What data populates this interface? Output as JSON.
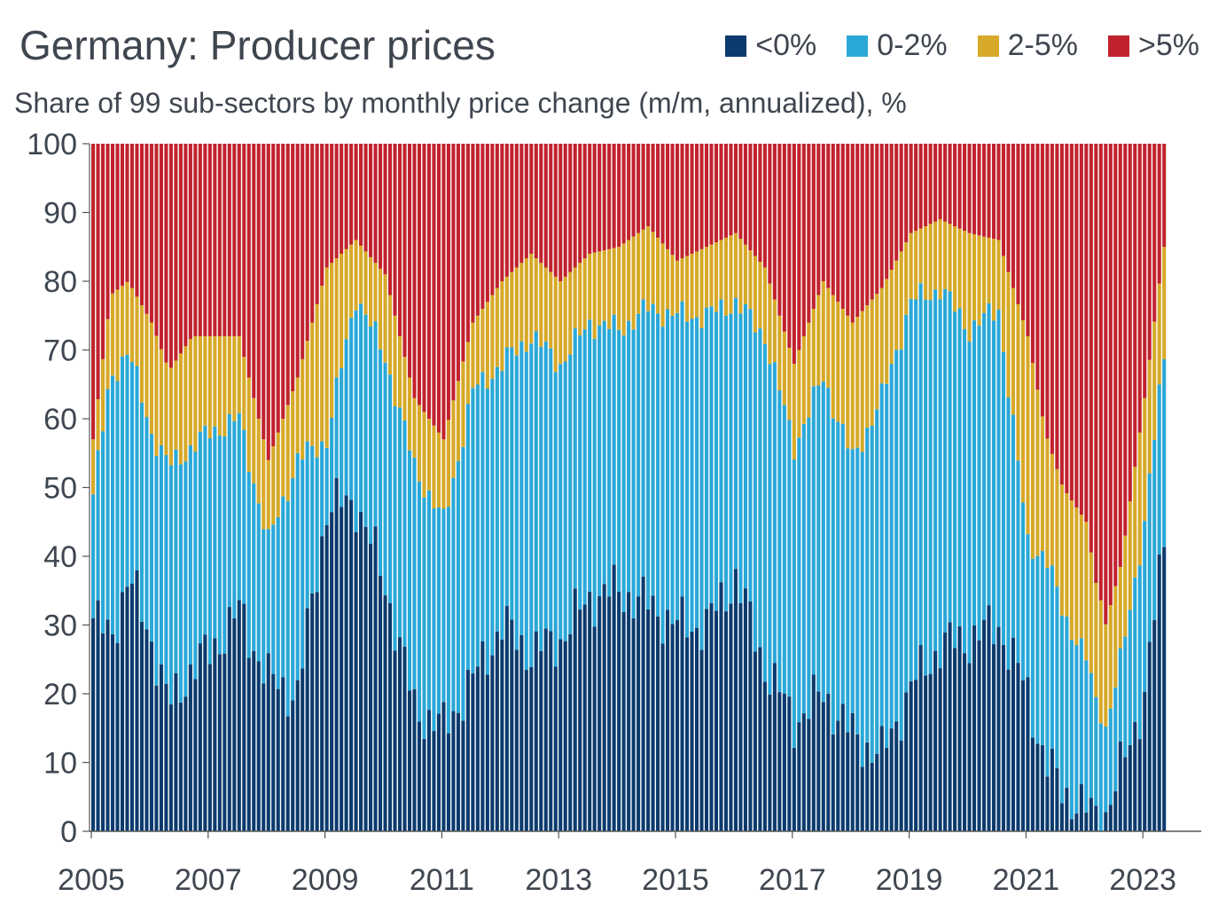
{
  "chart_data": {
    "type": "bar",
    "stacked": true,
    "title": "Germany: Producer prices",
    "subtitle": "Share of 99 sub-sectors by monthly price change (m/m, annualized), %",
    "xlabel": "",
    "ylabel": "",
    "ylim": [
      0,
      100
    ],
    "yticks": [
      "0",
      "10",
      "20",
      "30",
      "40",
      "50",
      "60",
      "70",
      "80",
      "90",
      "100"
    ],
    "xticks": [
      "2005",
      "2007",
      "2009",
      "2011",
      "2013",
      "2015",
      "2017",
      "2019",
      "2021",
      "2023"
    ],
    "x_start": "2005-01",
    "x_end": "2023-05",
    "series": [
      {
        "name": "<0%",
        "color": "#0b3b6e",
        "anchors": [
          [
            2005.0,
            31
          ],
          [
            2005.3,
            28
          ],
          [
            2005.6,
            37
          ],
          [
            2006.0,
            28
          ],
          [
            2006.3,
            18
          ],
          [
            2006.7,
            24
          ],
          [
            2007.0,
            26
          ],
          [
            2007.5,
            32
          ],
          [
            2008.0,
            22
          ],
          [
            2008.5,
            20
          ],
          [
            2009.0,
            47
          ],
          [
            2009.5,
            48
          ],
          [
            2010.0,
            36
          ],
          [
            2010.5,
            18
          ],
          [
            2011.0,
            15
          ],
          [
            2011.5,
            22
          ],
          [
            2012.0,
            30
          ],
          [
            2012.5,
            26
          ],
          [
            2013.0,
            28
          ],
          [
            2013.5,
            34
          ],
          [
            2014.0,
            35
          ],
          [
            2014.5,
            33
          ],
          [
            2015.0,
            30
          ],
          [
            2015.5,
            30
          ],
          [
            2016.0,
            37
          ],
          [
            2016.5,
            24
          ],
          [
            2017.0,
            16
          ],
          [
            2017.5,
            20
          ],
          [
            2018.0,
            14
          ],
          [
            2018.5,
            11
          ],
          [
            2019.0,
            21
          ],
          [
            2019.5,
            27
          ],
          [
            2020.0,
            28
          ],
          [
            2020.5,
            30
          ],
          [
            2021.0,
            20
          ],
          [
            2021.3,
            10
          ],
          [
            2021.6,
            6
          ],
          [
            2022.0,
            3
          ],
          [
            2022.3,
            2
          ],
          [
            2022.6,
            9
          ],
          [
            2023.0,
            20
          ],
          [
            2023.33,
            42
          ]
        ]
      },
      {
        "name": "0-2%",
        "color": "#2aa8d8",
        "anchors": [
          [
            2005.0,
            18
          ],
          [
            2005.3,
            38
          ],
          [
            2005.6,
            33
          ],
          [
            2006.0,
            30
          ],
          [
            2006.3,
            35
          ],
          [
            2006.7,
            32
          ],
          [
            2007.0,
            32
          ],
          [
            2007.5,
            28
          ],
          [
            2008.0,
            20
          ],
          [
            2008.5,
            34
          ],
          [
            2009.0,
            10
          ],
          [
            2009.5,
            30
          ],
          [
            2010.0,
            33
          ],
          [
            2010.5,
            35
          ],
          [
            2011.0,
            30
          ],
          [
            2011.5,
            42
          ],
          [
            2012.0,
            38
          ],
          [
            2012.5,
            46
          ],
          [
            2013.0,
            40
          ],
          [
            2013.5,
            40
          ],
          [
            2014.0,
            38
          ],
          [
            2014.5,
            43
          ],
          [
            2015.0,
            45
          ],
          [
            2015.5,
            45
          ],
          [
            2016.0,
            40
          ],
          [
            2016.5,
            48
          ],
          [
            2017.0,
            40
          ],
          [
            2017.5,
            46
          ],
          [
            2018.0,
            40
          ],
          [
            2018.5,
            52
          ],
          [
            2019.0,
            56
          ],
          [
            2019.5,
            52
          ],
          [
            2020.0,
            45
          ],
          [
            2020.5,
            46
          ],
          [
            2021.0,
            22
          ],
          [
            2021.3,
            30
          ],
          [
            2021.6,
            26
          ],
          [
            2022.0,
            22
          ],
          [
            2022.3,
            12
          ],
          [
            2022.6,
            16
          ],
          [
            2023.0,
            25
          ],
          [
            2023.33,
            27
          ]
        ]
      },
      {
        "name": "2-5%",
        "color": "#d7a928",
        "anchors": [
          [
            2005.0,
            8
          ],
          [
            2005.3,
            12
          ],
          [
            2005.6,
            10
          ],
          [
            2006.0,
            16
          ],
          [
            2006.3,
            14
          ],
          [
            2006.7,
            16
          ],
          [
            2007.0,
            14
          ],
          [
            2007.5,
            12
          ],
          [
            2008.0,
            12
          ],
          [
            2008.5,
            12
          ],
          [
            2009.0,
            25
          ],
          [
            2009.5,
            8
          ],
          [
            2010.0,
            12
          ],
          [
            2010.5,
            10
          ],
          [
            2011.0,
            12
          ],
          [
            2011.5,
            10
          ],
          [
            2012.0,
            12
          ],
          [
            2012.5,
            12
          ],
          [
            2013.0,
            12
          ],
          [
            2013.5,
            10
          ],
          [
            2014.0,
            12
          ],
          [
            2014.5,
            12
          ],
          [
            2015.0,
            8
          ],
          [
            2015.5,
            10
          ],
          [
            2016.0,
            10
          ],
          [
            2016.5,
            10
          ],
          [
            2017.0,
            12
          ],
          [
            2017.5,
            14
          ],
          [
            2018.0,
            20
          ],
          [
            2018.5,
            16
          ],
          [
            2019.0,
            10
          ],
          [
            2019.5,
            10
          ],
          [
            2020.0,
            14
          ],
          [
            2020.5,
            10
          ],
          [
            2021.0,
            30
          ],
          [
            2021.3,
            18
          ],
          [
            2021.6,
            18
          ],
          [
            2022.0,
            20
          ],
          [
            2022.3,
            15
          ],
          [
            2022.6,
            14
          ],
          [
            2023.0,
            18
          ],
          [
            2023.33,
            16
          ]
        ]
      }
    ]
  },
  "legend": {
    "items": [
      {
        "label": "<0%",
        "color": "#0b3b6e"
      },
      {
        "label": "0-2%",
        "color": "#2aa8d8"
      },
      {
        "label": "2-5%",
        "color": "#d7a928"
      },
      {
        "label": ">5%",
        "color": "#c1222e"
      }
    ]
  }
}
